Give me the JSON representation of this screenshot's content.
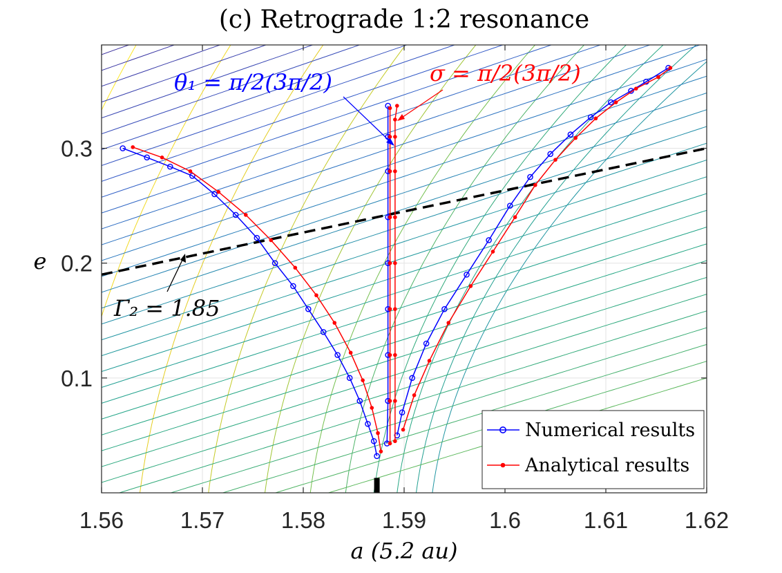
{
  "chart_data": {
    "type": "line",
    "title": "(c) Retrograde 1:2 resonance",
    "xlabel": "a (5.2 au)",
    "ylabel": "e",
    "xlim": [
      1.56,
      1.62
    ],
    "ylim": [
      0.0,
      0.39
    ],
    "xticks": [
      1.56,
      1.57,
      1.58,
      1.59,
      1.6,
      1.61,
      1.62
    ],
    "xtick_labels": [
      "1.56",
      "1.57",
      "1.58",
      "1.59",
      "1.6",
      "1.61",
      "1.62"
    ],
    "yticks": [
      0.1,
      0.2,
      0.3
    ],
    "ytick_labels": [
      "0.1",
      "0.2",
      "0.3"
    ],
    "grid": true,
    "legend_position": "bottom-right",
    "colors": {
      "numerical": "#0000ff",
      "analytical": "#ff0000",
      "dashed": "#000000",
      "contour_low": "#fde725",
      "contour_mid": "#21a585",
      "contour_high": "#3b2a98"
    },
    "series": [
      {
        "name": "Numerical results",
        "marker": "circle",
        "color": "#0000ff",
        "branches": [
          {
            "a": [
              1.5621,
              1.5645,
              1.5668,
              1.569,
              1.5712,
              1.5733,
              1.5754,
              1.5772,
              1.579,
              1.5805,
              1.582,
              1.5834,
              1.5846,
              1.5856,
              1.5864,
              1.587,
              1.5873
            ],
            "e": [
              0.3,
              0.292,
              0.284,
              0.276,
              0.26,
              0.242,
              0.222,
              0.2,
              0.18,
              0.16,
              0.14,
              0.12,
              0.1,
              0.08,
              0.06,
              0.045,
              0.032
            ]
          },
          {
            "a": [
              1.5883,
              1.5884,
              1.5884,
              1.5884,
              1.5884,
              1.5884,
              1.5884,
              1.5884,
              1.5884
            ],
            "e": [
              0.043,
              0.08,
              0.12,
              0.16,
              0.2,
              0.24,
              0.28,
              0.31,
              0.337
            ]
          },
          {
            "a": [
              1.5893,
              1.5898,
              1.5908,
              1.5922,
              1.594,
              1.5962,
              1.5984,
              1.6005,
              1.6025,
              1.6045,
              1.6065,
              1.6085,
              1.6105,
              1.6125,
              1.614,
              1.6162
            ],
            "e": [
              0.05,
              0.07,
              0.1,
              0.13,
              0.16,
              0.19,
              0.22,
              0.25,
              0.275,
              0.295,
              0.312,
              0.327,
              0.34,
              0.35,
              0.358,
              0.37
            ]
          }
        ]
      },
      {
        "name": "Analytical results",
        "marker": "dot",
        "color": "#ff0000",
        "branches": [
          {
            "a": [
              1.5631,
              1.566,
              1.5688,
              1.5716,
              1.5743,
              1.5768,
              1.5792,
              1.5813,
              1.5831,
              1.5847,
              1.5859,
              1.5868,
              1.5874,
              1.5877
            ],
            "e": [
              0.301,
              0.292,
              0.28,
              0.262,
              0.242,
              0.22,
              0.196,
              0.172,
              0.148,
              0.122,
              0.098,
              0.074,
              0.052,
              0.036
            ]
          },
          {
            "a": [
              1.5886,
              1.5886,
              1.5886,
              1.5886,
              1.5886,
              1.5886,
              1.5886,
              1.5886,
              1.5886
            ],
            "e": [
              0.043,
              0.08,
              0.12,
              0.16,
              0.2,
              0.24,
              0.28,
              0.31,
              0.335
            ]
          },
          {
            "a": [
              1.5891,
              1.5891,
              1.5891,
              1.5891,
              1.5891,
              1.5891,
              1.5891,
              1.5891,
              1.5891,
              1.5893
            ],
            "e": [
              0.045,
              0.08,
              0.12,
              0.16,
              0.2,
              0.24,
              0.28,
              0.31,
              0.325,
              0.337
            ]
          },
          {
            "a": [
              1.5899,
              1.591,
              1.5925,
              1.5944,
              1.5966,
              1.5988,
              1.601,
              1.603,
              1.605,
              1.607,
              1.609,
              1.611,
              1.613,
              1.6152,
              1.6164
            ],
            "e": [
              0.055,
              0.085,
              0.115,
              0.148,
              0.18,
              0.21,
              0.24,
              0.268,
              0.29,
              0.309,
              0.326,
              0.34,
              0.352,
              0.362,
              0.37
            ]
          }
        ]
      }
    ],
    "reference_line": {
      "label": "Γ₂ = 1.85",
      "style": "dashed",
      "a": [
        1.56,
        1.62
      ],
      "e": [
        0.19,
        0.3
      ]
    },
    "annotations": [
      {
        "text": "θ₁ = π/2(3π/2)",
        "color": "#0000ff"
      },
      {
        "text": "σ = π/2(3π/2)",
        "color": "#ff0000"
      },
      {
        "text": "Γ₂ = 1.85",
        "color": "#000000"
      }
    ],
    "marker_bar": {
      "a": 1.5873,
      "e_top": 0.013
    }
  },
  "legend": {
    "numerical_label": "Numerical results",
    "analytical_label": "Analytical results"
  }
}
